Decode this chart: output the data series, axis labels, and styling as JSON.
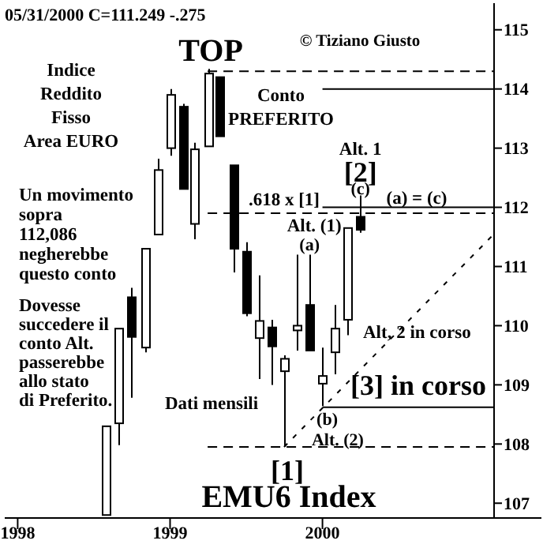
{
  "chart_data": {
    "type": "candlestick",
    "title": "EMU6 Index",
    "x": [
      "1998-08",
      "1998-09",
      "1998-10",
      "1998-11",
      "1998-12",
      "1999-01",
      "1999-02",
      "1999-03",
      "1999-04",
      "1999-05",
      "1999-06",
      "1999-07",
      "1999-08",
      "1999-09",
      "1999-10",
      "1999-11",
      "1999-12",
      "2000-01",
      "2000-02",
      "2000-03",
      "2000-04"
    ],
    "ohlc": [
      [
        106.8,
        108.3,
        106.8,
        108.3
      ],
      [
        108.35,
        109.95,
        107.98,
        109.95
      ],
      [
        110.48,
        110.64,
        108.78,
        109.81
      ],
      [
        109.63,
        111.3,
        109.55,
        111.3
      ],
      [
        111.54,
        112.82,
        111.54,
        112.63
      ],
      [
        113.0,
        114.0,
        112.87,
        113.9
      ],
      [
        113.7,
        113.75,
        112.3,
        112.31
      ],
      [
        111.72,
        113.09,
        111.46,
        112.98
      ],
      [
        113.03,
        114.34,
        113.03,
        114.26
      ],
      [
        114.2,
        114.2,
        113.2,
        113.2
      ],
      [
        112.71,
        112.71,
        110.9,
        111.3
      ],
      [
        111.25,
        111.41,
        110.16,
        110.21
      ],
      [
        109.79,
        110.85,
        109.1,
        110.08
      ],
      [
        109.97,
        110.1,
        109.0,
        109.65
      ],
      [
        109.23,
        109.5,
        107.95,
        109.44
      ],
      [
        109.92,
        111.2,
        109.58,
        110.0
      ],
      [
        110.35,
        111.2,
        109.58,
        109.58
      ],
      [
        109.02,
        109.63,
        108.64,
        109.15
      ],
      [
        109.55,
        110.35,
        109.18,
        109.95
      ],
      [
        110.1,
        111.65,
        109.84,
        111.65
      ],
      [
        111.84,
        112.2,
        111.57,
        111.62
      ]
    ],
    "series": [
      {
        "type": "line",
        "x": [
          "1999-04",
          "2001-02-15"
        ],
        "values": [
          114.3,
          114.3
        ],
        "line_style": "dashed",
        "color": "#000000"
      },
      {
        "type": "line",
        "x": [
          "2000-01",
          "2001-02-15"
        ],
        "values": [
          114,
          114
        ],
        "line_style": "solid",
        "color": "#000000"
      },
      {
        "type": "line",
        "x": [
          "2000-01",
          "2001-02-15"
        ],
        "values": [
          112,
          112
        ],
        "line_style": "solid",
        "color": "#000000"
      },
      {
        "type": "line",
        "x": [
          "1999-04",
          "2001-02-15"
        ],
        "values": [
          111.9,
          111.9
        ],
        "line_style": "dashed",
        "color": "#000000"
      },
      {
        "type": "line",
        "x": [
          "2000-01",
          "2001-02-15"
        ],
        "values": [
          108.62,
          108.62
        ],
        "line_style": "solid",
        "color": "#000000"
      },
      {
        "type": "line",
        "x": [
          "1999-04",
          "2001-02-15"
        ],
        "values": [
          107.95,
          107.95
        ],
        "line_style": "dashed",
        "color": "#000000"
      },
      {
        "type": "line",
        "x": [
          "1999-10",
          "2001-02-15"
        ],
        "values": [
          107.95,
          111.55
        ],
        "line_style": "dashed",
        "color": "#000000"
      }
    ],
    "xlim": [
      "1997-12",
      "2001-02-15"
    ],
    "xticks": [
      {
        "value": "1998",
        "label": "1998"
      },
      {
        "value": "1999",
        "label": "1999"
      },
      {
        "value": "2000",
        "label": "2000"
      }
    ],
    "ylim": [
      106.75,
      115.45
    ],
    "yticks": [
      107,
      108,
      109,
      110,
      111,
      112,
      113,
      114,
      115
    ],
    "annotations": [
      "05/31/2000  C=111.249  -.275",
      "© Tiziano Giusto",
      {
        "text": "TOP",
        "x": "1999-04",
        "y": 114.34
      },
      "Indice\nReddito\nFisso\nArea EURO",
      "Conto\nPREFERITO",
      {
        "text": "Alt. 1",
        "x": "2000-04",
        "y": 112.2
      },
      {
        "text": "[2]",
        "x": "2000-04",
        "y": 112.2
      },
      {
        "text": "(c)",
        "x": "2000-04",
        "y": 112.2
      },
      "(a) = (c)",
      ".618 x [1]",
      "Un movimento\nsopra\n112,086\nnegherebbe\nquesto conto",
      {
        "text": "Alt. (1)",
        "x": "1999-12",
        "y": 111.2
      },
      {
        "text": "(a)",
        "x": "1999-12",
        "y": 111.2
      },
      "Dovesse\nsuccedere il\nconto Alt.\npasserebbe\nallo stato\ndi Preferito.",
      "Alt, 2 in corso",
      "[3] in corso",
      "Dati mensili",
      {
        "text": "(b)",
        "x": "2000-01",
        "y": 108.64
      },
      {
        "text": "Alt. (2)",
        "x": "1999-10",
        "y": 107.95
      },
      {
        "text": "[1]",
        "x": "1999-10",
        "y": 107.95
      }
    ]
  }
}
